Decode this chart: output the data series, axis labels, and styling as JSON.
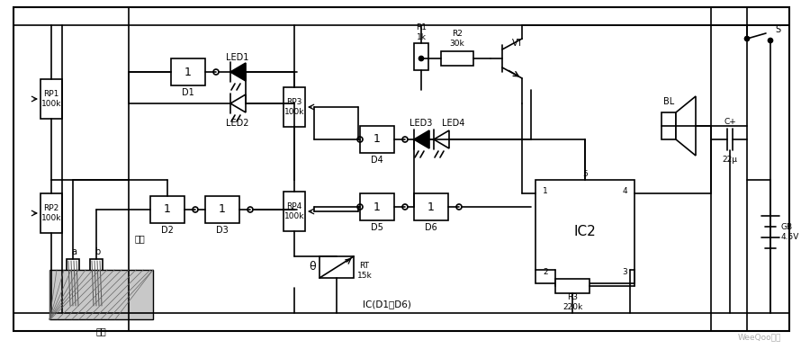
{
  "bg_color": "#ffffff",
  "line_color": "#000000",
  "fig_width": 9.0,
  "fig_height": 3.88,
  "watermark": "WeeQoo维库",
  "ic_note": "IC(D1～D6)",
  "electrode": "电极",
  "soil": "土壤"
}
